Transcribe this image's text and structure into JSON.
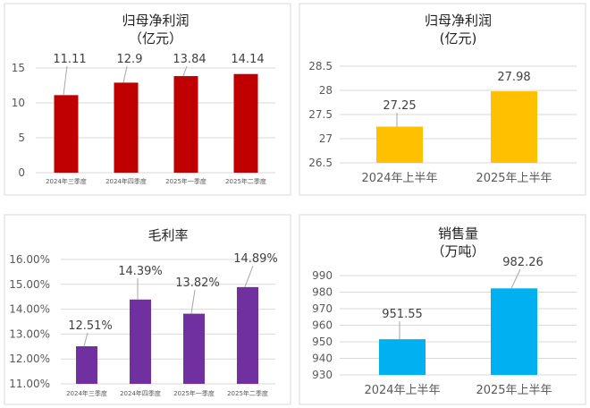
{
  "chart_data": [
    {
      "type": "bar",
      "title": "归母净利润",
      "subtitle": "（亿元）",
      "categories": [
        "2024年三季度",
        "2024年四季度",
        "2025年一季度",
        "2025年二季度"
      ],
      "values": [
        11.11,
        12.9,
        13.84,
        14.14
      ],
      "value_labels": [
        "11.11",
        "12.9",
        "13.84",
        "14.14"
      ],
      "ylim": [
        0,
        15
      ],
      "yticks": [
        "0",
        "5",
        "10",
        "15"
      ],
      "ytick_values": [
        0,
        5,
        10,
        15
      ],
      "color": "#C00000",
      "grid": true
    },
    {
      "type": "bar",
      "title": "归母净利润",
      "subtitle": "(亿元)",
      "categories": [
        "2024年上半年",
        "2025年上半年"
      ],
      "values": [
        27.25,
        27.98
      ],
      "value_labels": [
        "27.25",
        "27.98"
      ],
      "ylim": [
        26.5,
        28.5
      ],
      "yticks": [
        "26.5",
        "27",
        "27.5",
        "28",
        "28.5"
      ],
      "ytick_values": [
        26.5,
        27,
        27.5,
        28,
        28.5
      ],
      "color": "#FFC000",
      "grid": true
    },
    {
      "type": "bar",
      "title": "毛利率",
      "subtitle": "",
      "categories": [
        "2024年三季度",
        "2024年四季度",
        "2025年一季度",
        "2025年二季度"
      ],
      "values": [
        12.51,
        14.39,
        13.82,
        14.89
      ],
      "value_labels": [
        "12.51%",
        "14.39%",
        "13.82%",
        "14.89%"
      ],
      "ylim": [
        11,
        16
      ],
      "yticks": [
        "11.00%",
        "12.00%",
        "13.00%",
        "14.00%",
        "15.00%",
        "16.00%"
      ],
      "ytick_values": [
        11,
        12,
        13,
        14,
        15,
        16
      ],
      "color": "#7030A0",
      "grid": true
    },
    {
      "type": "bar",
      "title": "销售量",
      "subtitle": "（万吨）",
      "categories": [
        "2024年上半年",
        "2025年上半年"
      ],
      "values": [
        951.55,
        982.26
      ],
      "value_labels": [
        "951.55",
        "982.26"
      ],
      "ylim": [
        930,
        990
      ],
      "yticks": [
        "930",
        "940",
        "950",
        "960",
        "970",
        "980",
        "990"
      ],
      "ytick_values": [
        930,
        940,
        950,
        960,
        970,
        980,
        990
      ],
      "color": "#00B0F0",
      "grid": true
    }
  ]
}
